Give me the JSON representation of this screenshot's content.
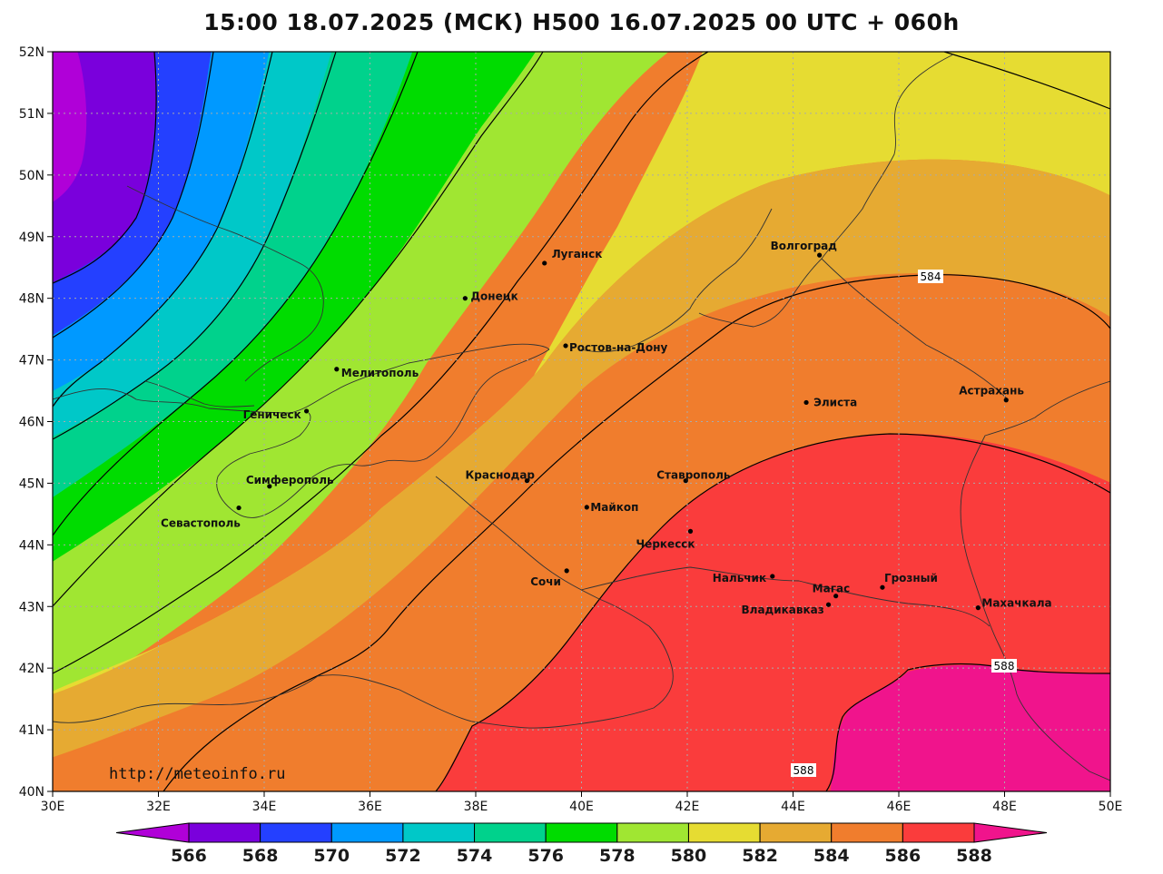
{
  "title": "15:00 18.07.2025 (МСК) H500  16.07.2025 00 UTC + 060h",
  "credit": "http://meteoinfo.ru",
  "axes": {
    "lon_labels": [
      "30E",
      "32E",
      "34E",
      "36E",
      "38E",
      "40E",
      "42E",
      "44E",
      "46E",
      "48E",
      "50E"
    ],
    "lat_labels": [
      "52N",
      "51N",
      "50N",
      "49N",
      "48N",
      "47N",
      "46N",
      "45N",
      "44N",
      "43N",
      "42N",
      "41N",
      "40N"
    ]
  },
  "colorbar": {
    "levels": [
      "566",
      "568",
      "570",
      "572",
      "574",
      "576",
      "578",
      "580",
      "582",
      "584",
      "586",
      "588"
    ],
    "colors": [
      "#b000d8",
      "#7a00dc",
      "#2440ff",
      "#0099ff",
      "#00c8c8",
      "#00d28c",
      "#00dc00",
      "#a0e632",
      "#e6dc32",
      "#e6aa32",
      "#f07d2d",
      "#fa3c3c",
      "#f0148c"
    ]
  },
  "contour_labels": [
    "584",
    "588",
    "588"
  ],
  "cities": [
    {
      "name": "Волгоград",
      "lon": 44.5,
      "lat": 48.7
    },
    {
      "name": "Луганск",
      "lon": 39.3,
      "lat": 48.57
    },
    {
      "name": "Донецк",
      "lon": 37.8,
      "lat": 48.0
    },
    {
      "name": "Ростов-на-Дону",
      "lon": 39.7,
      "lat": 47.23
    },
    {
      "name": "Мелитополь",
      "lon": 35.37,
      "lat": 46.85
    },
    {
      "name": "Геническ",
      "lon": 34.8,
      "lat": 46.17
    },
    {
      "name": "Элиста",
      "lon": 44.25,
      "lat": 46.31
    },
    {
      "name": "Астрахань",
      "lon": 48.03,
      "lat": 46.35
    },
    {
      "name": "Симферополь",
      "lon": 34.1,
      "lat": 44.95
    },
    {
      "name": "Севастополь",
      "lon": 33.52,
      "lat": 44.6
    },
    {
      "name": "Краснодар",
      "lon": 38.97,
      "lat": 45.04
    },
    {
      "name": "Ставрополь",
      "lon": 41.97,
      "lat": 45.04
    },
    {
      "name": "Майкоп",
      "lon": 40.1,
      "lat": 44.61
    },
    {
      "name": "Черкесск",
      "lon": 42.06,
      "lat": 44.22
    },
    {
      "name": "Сочи",
      "lon": 39.72,
      "lat": 43.58
    },
    {
      "name": "Нальчик",
      "lon": 43.61,
      "lat": 43.49
    },
    {
      "name": "Магас",
      "lon": 44.81,
      "lat": 43.17
    },
    {
      "name": "Грозный",
      "lon": 45.69,
      "lat": 43.31
    },
    {
      "name": "Владикавказ",
      "lon": 44.67,
      "lat": 43.03
    },
    {
      "name": "Махачкала",
      "lon": 47.5,
      "lat": 42.98
    }
  ]
}
